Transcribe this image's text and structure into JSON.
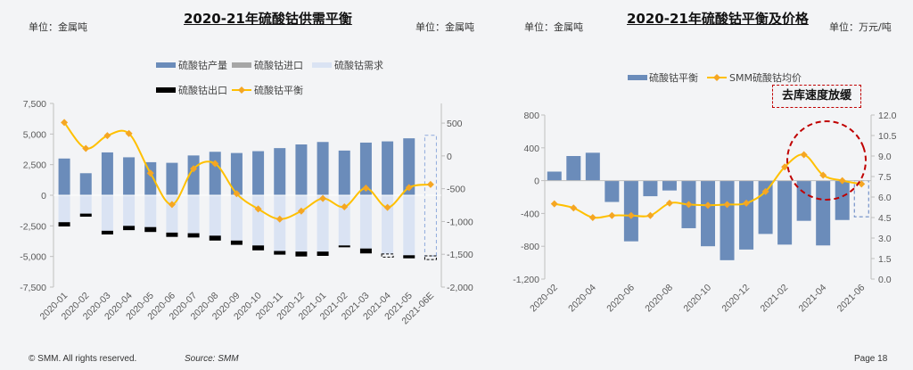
{
  "footer": {
    "copyright": "© SMM. All rights reserved.",
    "source": "Source: SMM",
    "page": "Page 18"
  },
  "colors": {
    "production": "#6b8cba",
    "imports": "#a6a6a6",
    "demand": "#dae3f3",
    "exports": "#000000",
    "line": "#ffc000",
    "marker": "#f5a623",
    "callout": "#c00000"
  },
  "chart_data": [
    {
      "type": "bar",
      "title": "2020-21年硫酸钴供需平衡",
      "unit_left": "单位：金属吨",
      "unit_right": "单位：金属吨",
      "categories": [
        "2020-01",
        "2020-02",
        "2020-03",
        "2020-04",
        "2020-05",
        "2020-06",
        "2020-07",
        "2020-08",
        "2020-09",
        "2020-10",
        "2020-11",
        "2020-12",
        "2021-01",
        "2021-02",
        "2021-03",
        "2021-04",
        "2021-05",
        "2021-06E"
      ],
      "ylim": [
        -7500,
        7500
      ],
      "yticks": [
        "7,500",
        "5,000",
        "2,500",
        "0",
        "-2,500",
        "-5,000",
        "-7,500"
      ],
      "y2lim": [
        -2000,
        800
      ],
      "y2ticks": [
        "500",
        "0",
        "-500",
        "-1,000",
        "-1,500",
        "-2,000"
      ],
      "legend_position": "top",
      "series": [
        {
          "name": "硫酸钴产量",
          "kind": "bar",
          "values": [
            3000,
            1800,
            3500,
            3100,
            2700,
            2650,
            3250,
            3550,
            3450,
            3600,
            3850,
            4150,
            4350,
            3650,
            4300,
            4400,
            4650,
            4900
          ]
        },
        {
          "name": "硫酸钴进口",
          "kind": "bar",
          "values": [
            0,
            0,
            0,
            0,
            0,
            0,
            0,
            0,
            0,
            0,
            0,
            0,
            0,
            0,
            0,
            0,
            0,
            0
          ]
        },
        {
          "name": "硫酸钴需求",
          "kind": "bar",
          "values": [
            -2200,
            -1500,
            -2900,
            -2500,
            -2600,
            -3050,
            -3100,
            -3300,
            -3700,
            -4100,
            -4550,
            -4600,
            -4600,
            -4100,
            -4350,
            -4800,
            -4900,
            -4950
          ]
        },
        {
          "name": "硫酸钴出口",
          "kind": "bar",
          "values": [
            -350,
            -250,
            -300,
            -350,
            -400,
            -350,
            -350,
            -400,
            -350,
            -400,
            -300,
            -400,
            -350,
            -150,
            -400,
            -250,
            -250,
            -300
          ]
        },
        {
          "name": "硫酸钴平衡",
          "kind": "line",
          "axis": "right",
          "values": [
            509,
            114,
            309,
            341,
            -264,
            -741,
            -195,
            -118,
            -577,
            -809,
            -964,
            -841,
            -650,
            -777,
            -491,
            -786,
            -482,
            -436
          ]
        }
      ],
      "estimated_categories": [
        "2021-06E"
      ]
    },
    {
      "type": "bar",
      "title": "2020-21年硫酸钴平衡及价格",
      "unit_left": "单位：金属吨",
      "unit_right": "单位：万元/吨",
      "categories": [
        "2020-02",
        "2020-03",
        "2020-04",
        "2020-05",
        "2020-06",
        "2020-07",
        "2020-08",
        "2020-09",
        "2020-10",
        "2020-11",
        "2020-12",
        "2021-01",
        "2021-02",
        "2021-03",
        "2021-04",
        "2021-05",
        "2021-06"
      ],
      "xtick_labels": [
        "2020-02",
        "2020-04",
        "2020-06",
        "2020-08",
        "2020-10",
        "2020-12",
        "2021-02",
        "2021-04",
        "2021-06"
      ],
      "ylim": [
        -1200,
        800
      ],
      "yticks": [
        "800",
        "400",
        "0",
        "-400",
        "-800",
        "-1,200"
      ],
      "y2lim": [
        0,
        12
      ],
      "y2ticks": [
        "12.0",
        "10.5",
        "9.0",
        "7.5",
        "6.0",
        "4.5",
        "3.0",
        "1.5",
        "0.0"
      ],
      "legend_position": "top",
      "series": [
        {
          "name": "硫酸钴平衡",
          "kind": "bar",
          "values": [
            110,
            300,
            340,
            -260,
            -740,
            -190,
            -120,
            -580,
            -800,
            -970,
            -840,
            -650,
            -780,
            -490,
            -790,
            -480,
            -440
          ]
        },
        {
          "name": "SMM硫酸钴均价",
          "kind": "line",
          "axis": "right",
          "values": [
            5.5,
            5.2,
            4.5,
            4.65,
            4.65,
            4.65,
            5.55,
            5.45,
            5.4,
            5.45,
            5.55,
            6.4,
            8.2,
            9.1,
            7.6,
            7.2,
            6.95
          ]
        }
      ],
      "annotation": "去库速度放缓"
    }
  ]
}
